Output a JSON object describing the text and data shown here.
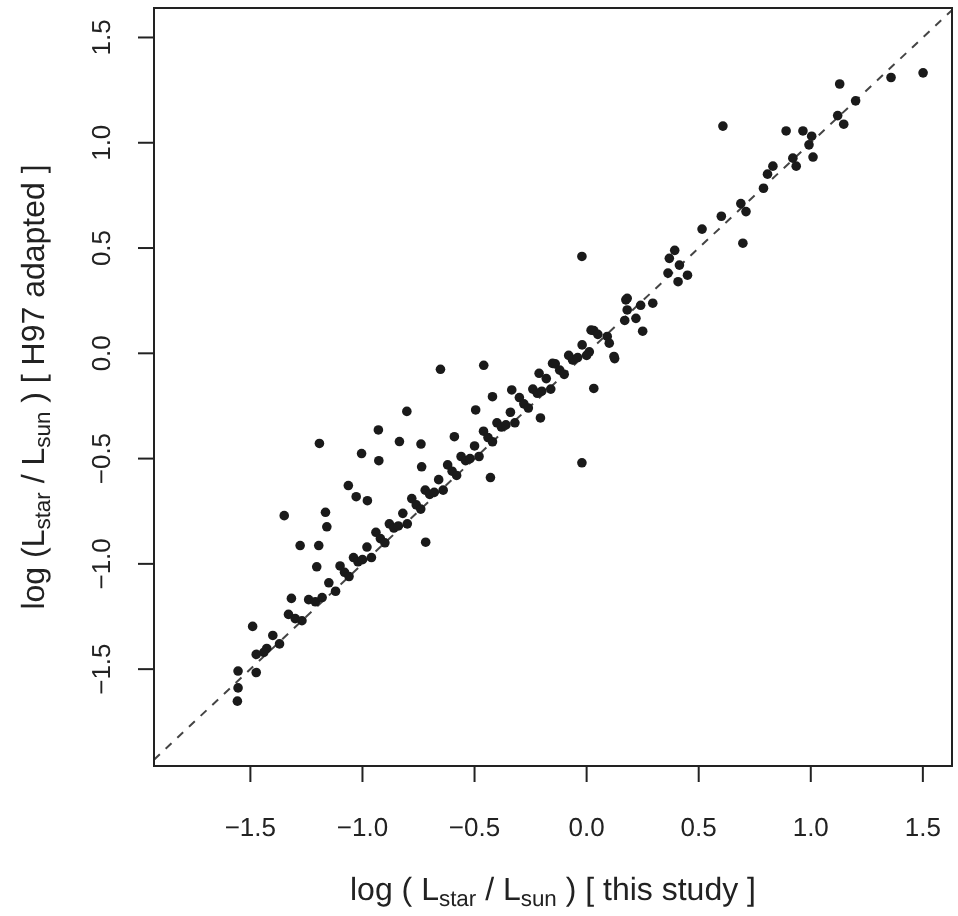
{
  "chart_data": {
    "type": "scatter",
    "xlabel": "log ( L$_{star}$ / L$_{sun}$ )  [ this study ]",
    "ylabel": "log (L$_{star}$ / L$_{sun}$ )  [ H97 adapted ]",
    "xlim": [
      -1.93,
      1.63
    ],
    "ylim": [
      -1.96,
      1.64
    ],
    "xticks": [
      {
        "value": -1.5,
        "label": "−1.5"
      },
      {
        "value": -1,
        "label": "−1.0"
      },
      {
        "value": -0.5,
        "label": "−0.5"
      },
      {
        "value": 0,
        "label": "0.0"
      },
      {
        "value": 0.5,
        "label": "0.5"
      },
      {
        "value": 1,
        "label": "1.0"
      },
      {
        "value": 1.5,
        "label": "1.5"
      }
    ],
    "yticks": [
      {
        "value": -1.5,
        "label": "−1.5"
      },
      {
        "value": -1,
        "label": "−1.0"
      },
      {
        "value": -0.5,
        "label": "−0.5"
      },
      {
        "value": 0,
        "label": "0.0"
      },
      {
        "value": 0.5,
        "label": "0.5"
      },
      {
        "value": 1,
        "label": "1.0"
      },
      {
        "value": 1.5,
        "label": "1.5"
      }
    ],
    "grid": false,
    "series": [
      {
        "type": "line",
        "color": "#444444",
        "line_style": "dashed",
        "marker": "none",
        "x": [
          -1.93,
          1.63
        ],
        "values": [
          -1.93,
          1.63
        ]
      },
      {
        "color": "#1a1a1a",
        "marker": "circle",
        "x": [
          -0.652,
          -0.459,
          -1.192,
          -0.802,
          -0.929,
          -1.004,
          -0.927,
          -0.835,
          -0.739,
          -0.736,
          -1.063,
          -1.028,
          -0.978,
          -1.349,
          -1.165,
          -1.159,
          -1.278,
          -1.195,
          -1.204,
          -1.317,
          -1.49,
          -1.555,
          -1.555,
          -1.558,
          -1.474,
          -1.474,
          -1.427,
          -0.718,
          -0.429,
          -0.495,
          -0.334,
          -0.021,
          -0.021,
          0.25,
          0.175,
          0.125,
          0.032,
          0.032,
          0.012,
          -0.063,
          -0.152,
          -0.212,
          -0.206,
          -0.42,
          -0.59,
          1.501,
          1.358,
          1.129,
          1.2,
          1.12,
          1.147,
          0.608,
          0.89,
          0.965,
          1.004,
          0.992,
          1.01,
          0.92,
          0.935,
          0.831,
          0.807,
          0.789,
          0.688,
          0.711,
          0.601,
          0.515,
          0.697,
          0.393,
          0.369,
          0.414,
          0.363,
          0.45,
          0.408,
          0.295,
          0.181,
          0.241,
          0.181,
          0.22,
          0.17,
          0.092,
          0.101,
          0.122,
          -1.44,
          -1.4,
          -1.37,
          -1.33,
          -1.3,
          -1.27,
          -1.24,
          -1.21,
          -1.18,
          -1.15,
          -1.12,
          -1.1,
          -1.08,
          -1.06,
          -1.04,
          -1.02,
          -1,
          -0.98,
          -0.96,
          -0.94,
          -0.92,
          -0.9,
          -0.88,
          -0.86,
          -0.84,
          -0.82,
          -0.8,
          -0.78,
          -0.76,
          -0.74,
          -0.72,
          -0.7,
          -0.68,
          -0.66,
          -0.64,
          -0.62,
          -0.6,
          -0.58,
          -0.56,
          -0.54,
          -0.52,
          -0.5,
          -0.48,
          -0.46,
          -0.44,
          -0.42,
          -0.4,
          -0.38,
          -0.36,
          -0.34,
          -0.32,
          -0.3,
          -0.28,
          -0.26,
          -0.24,
          -0.22,
          -0.2,
          -0.18,
          -0.16,
          -0.14,
          -0.12,
          -0.1,
          -0.08,
          -0.06,
          -0.04,
          -0.02,
          0,
          0.02,
          0.05
        ],
        "values": [
          -0.076,
          -0.057,
          -0.428,
          -0.276,
          -0.364,
          -0.476,
          -0.51,
          -0.419,
          -0.431,
          -0.539,
          -0.628,
          -0.681,
          -0.7,
          -0.771,
          -0.755,
          -0.824,
          -0.913,
          -0.913,
          -1.014,
          -1.164,
          -1.297,
          -1.509,
          -1.589,
          -1.652,
          -1.43,
          -1.516,
          -1.402,
          -0.897,
          -0.59,
          -0.269,
          -0.174,
          0.46,
          -0.52,
          0.105,
          0.254,
          -0.025,
          -0.167,
          0.108,
          0.007,
          -0.031,
          -0.048,
          -0.095,
          -0.307,
          -0.206,
          -0.396,
          1.332,
          1.31,
          1.279,
          1.199,
          1.129,
          1.088,
          1.079,
          1.056,
          1.056,
          1.031,
          0.99,
          0.932,
          0.927,
          0.889,
          0.889,
          0.851,
          0.784,
          0.711,
          0.673,
          0.651,
          0.59,
          0.523,
          0.489,
          0.451,
          0.419,
          0.381,
          0.371,
          0.34,
          0.238,
          0.261,
          0.228,
          0.206,
          0.166,
          0.156,
          0.08,
          0.048,
          -0.015,
          -1.42,
          -1.34,
          -1.38,
          -1.24,
          -1.26,
          -1.27,
          -1.17,
          -1.18,
          -1.16,
          -1.09,
          -1.13,
          -1.01,
          -1.04,
          -1.06,
          -0.97,
          -0.99,
          -0.98,
          -0.92,
          -0.97,
          -0.85,
          -0.88,
          -0.9,
          -0.81,
          -0.83,
          -0.82,
          -0.76,
          -0.81,
          -0.69,
          -0.72,
          -0.74,
          -0.65,
          -0.67,
          -0.66,
          -0.6,
          -0.65,
          -0.53,
          -0.56,
          -0.58,
          -0.49,
          -0.51,
          -0.5,
          -0.44,
          -0.49,
          -0.37,
          -0.4,
          -0.42,
          -0.33,
          -0.35,
          -0.34,
          -0.28,
          -0.33,
          -0.21,
          -0.24,
          -0.26,
          -0.17,
          -0.19,
          -0.18,
          -0.12,
          -0.17,
          -0.05,
          -0.08,
          -0.1,
          -0.01,
          -0.03,
          -0.02,
          0.04,
          -0.01,
          0.11,
          0.09
        ]
      }
    ]
  }
}
